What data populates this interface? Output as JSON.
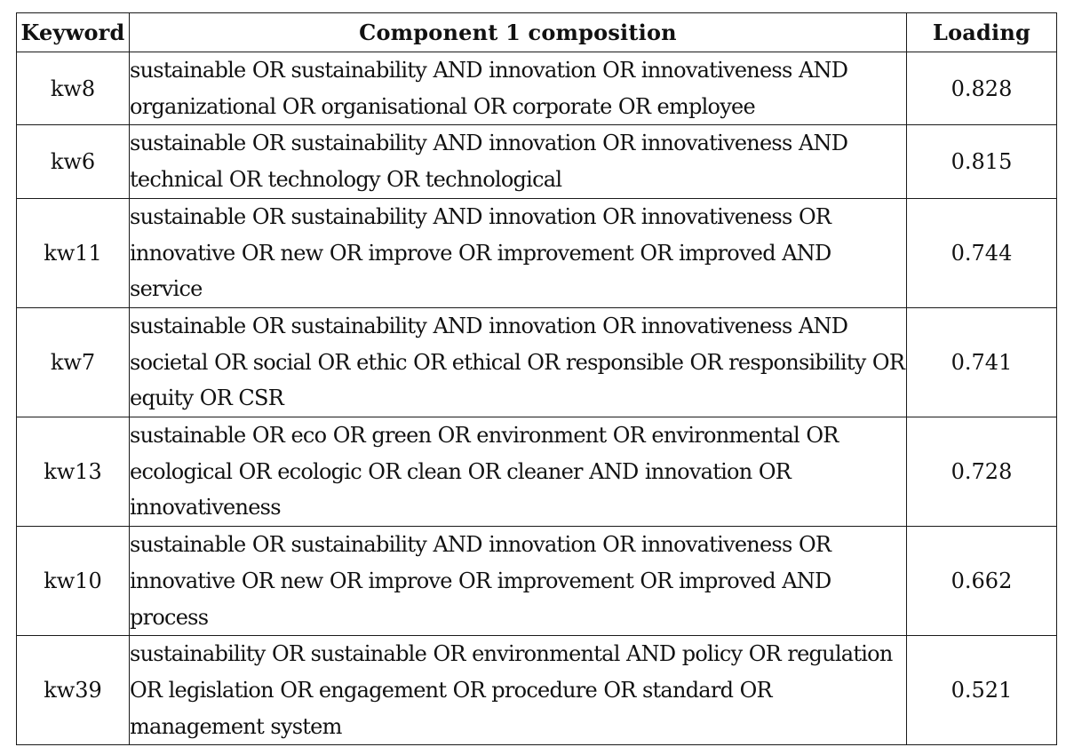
{
  "table": {
    "headers": {
      "keyword": "Keyword",
      "composition": "Component 1 composition",
      "loading": "Loading"
    },
    "rows": [
      {
        "keyword": "kw8",
        "composition": "sustainable OR sustainability AND innovation OR innovativeness AND organizational OR organisational OR corporate OR employee",
        "loading": "0.828"
      },
      {
        "keyword": "kw6",
        "composition": "sustainable OR sustainability AND innovation OR innovativeness AND technical OR technology OR technological",
        "loading": "0.815"
      },
      {
        "keyword": "kw11",
        "composition": "sustainable OR sustainability AND innovation OR innovativeness OR innovative OR new OR improve OR improvement OR improved AND service",
        "loading": "0.744"
      },
      {
        "keyword": "kw7",
        "composition": "sustainable OR sustainability AND innovation OR innovativeness AND societal OR social OR ethic OR ethical OR responsible OR responsibility OR equity OR CSR",
        "loading": "0.741"
      },
      {
        "keyword": "kw13",
        "composition": "sustainable OR eco OR green OR environment OR environmental OR ecological OR ecologic OR clean OR cleaner AND innovation OR innovativeness",
        "loading": "0.728"
      },
      {
        "keyword": "kw10",
        "composition": "sustainable OR sustainability AND innovation OR innovativeness OR innovative OR new OR improve OR improvement OR improved AND process",
        "loading": "0.662"
      },
      {
        "keyword": "kw39",
        "composition": "sustainability OR sustainable OR environmental AND policy OR regulation OR legislation OR engagement OR procedure OR standard OR management system",
        "loading": "0.521"
      }
    ]
  }
}
